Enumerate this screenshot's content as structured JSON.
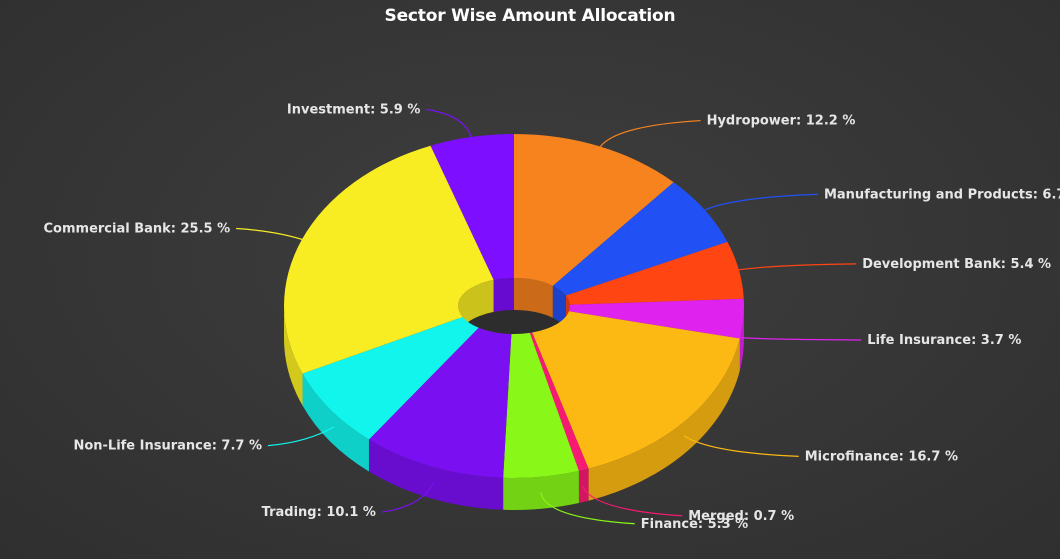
{
  "chart_data": {
    "type": "pie",
    "variant": "3d-donut",
    "title": "Sector Wise Amount Allocation",
    "label_suffix": " %",
    "slices": [
      {
        "name": "Hydropower",
        "value": 12.2,
        "color": "#f7831e"
      },
      {
        "name": "Manufacturing and Products",
        "value": 6.7,
        "color": "#2150f5"
      },
      {
        "name": "Development Bank",
        "value": 5.4,
        "color": "#ff4511"
      },
      {
        "name": "Life Insurance",
        "value": 3.7,
        "color": "#e022ef"
      },
      {
        "name": "Microfinance",
        "value": 16.7,
        "color": "#fcb813"
      },
      {
        "name": "Merged",
        "value": 0.7,
        "color": "#f71a73"
      },
      {
        "name": "Finance",
        "value": 5.3,
        "color": "#89f717"
      },
      {
        "name": "Trading",
        "value": 10.1,
        "color": "#7a0ff2"
      },
      {
        "name": "Non-Life Insurance",
        "value": 7.7,
        "color": "#12f5ec"
      },
      {
        "name": "Commercial Bank",
        "value": 25.5,
        "color": "#f8ed22"
      },
      {
        "name": "Investment",
        "value": 5.9,
        "color": "#7d0eff"
      }
    ]
  }
}
